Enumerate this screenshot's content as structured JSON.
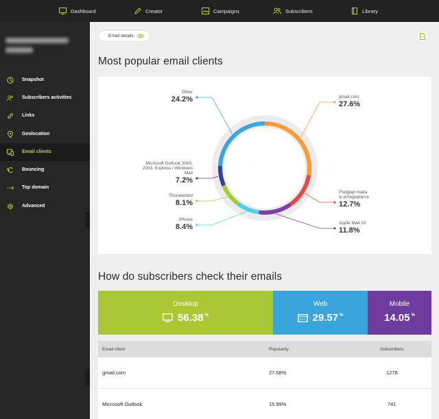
{
  "topnav": {
    "items": [
      {
        "label": "Dashboard",
        "icon": "monitor-icon"
      },
      {
        "label": "Creator",
        "icon": "pencil-icon"
      },
      {
        "label": "Campaigns",
        "icon": "image-icon"
      },
      {
        "label": "Subscribers",
        "icon": "users-icon"
      },
      {
        "label": "Library",
        "icon": "book-icon"
      }
    ]
  },
  "sidebar": {
    "items": [
      {
        "label": "Snapshot",
        "icon": "pie-icon"
      },
      {
        "label": "Subscribers activities",
        "icon": "users-icon"
      },
      {
        "label": "Links",
        "icon": "link-icon"
      },
      {
        "label": "Geolocation",
        "icon": "pin-icon"
      },
      {
        "label": "Email clients",
        "icon": "devices-icon",
        "active": true
      },
      {
        "label": "Bouncing",
        "icon": "bounce-icon"
      },
      {
        "label": "Top domain",
        "icon": "domain-icon"
      },
      {
        "label": "Advanced",
        "icon": "gear-icon"
      }
    ]
  },
  "main": {
    "details_label": "Email details",
    "section1_title": "Most popular email clients",
    "section2_title": "How do subscribers check their emails"
  },
  "chart_data": {
    "type": "pie",
    "title": "Most popular email clients",
    "slices": [
      {
        "label": "gmail.com",
        "value": 27.6,
        "display": "27.6%",
        "color": "#ff9933"
      },
      {
        "label": "Podgląd maila w przeglądarce",
        "value": 12.7,
        "display": "12.7%",
        "color": "#ee4444"
      },
      {
        "label": "Apple Mail 10",
        "value": 11.8,
        "display": "11.8%",
        "color": "#7e3fa8"
      },
      {
        "label": "iPhone",
        "value": 8.4,
        "display": "8.4%",
        "color": "#4fd0e4"
      },
      {
        "label": "Thunderbird",
        "value": 8.1,
        "display": "8.1%",
        "color": "#a6cc38"
      },
      {
        "label": "Microsoft Outlook 2000, 2003, Express / Windows Mail",
        "value": 7.2,
        "display": "7.2%",
        "color": "#34429a"
      },
      {
        "label": "Other",
        "value": 24.2,
        "display": "24.2%",
        "color": "#3aa5e0"
      }
    ]
  },
  "devices": [
    {
      "label": "Desktop",
      "value": "56.38",
      "unit": "%",
      "color": "#a9c834",
      "icon": "monitor-icon"
    },
    {
      "label": "Web",
      "value": "29.57",
      "unit": "%",
      "color": "#3ba5dd",
      "icon": "browser-icon"
    },
    {
      "label": "Mobile",
      "value": "14.05",
      "unit": "%",
      "color": "#6e3c9e"
    }
  ],
  "table": {
    "headers": [
      "Email client",
      "Popularity",
      "Subscribers"
    ],
    "rows": [
      [
        "gmail.com",
        "27.58%",
        "1278"
      ],
      [
        "Microsoft Outlook",
        "15.99%",
        "741"
      ]
    ]
  }
}
